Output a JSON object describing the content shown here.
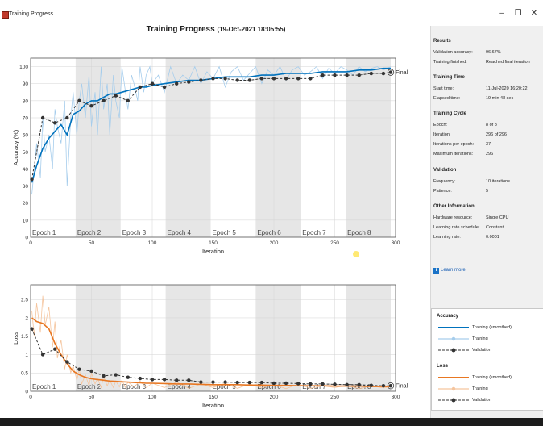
{
  "window": {
    "title": "Training Progress",
    "minimize": "–",
    "maximize": "❐",
    "close": "✕"
  },
  "header": {
    "title": "Training Progress",
    "timestamp": "(19-Oct-2021 18:05:55)"
  },
  "panel": {
    "results": {
      "heading": "Results",
      "rows": [
        {
          "label": "Validation accuracy:",
          "value": "96.67%"
        },
        {
          "label": "Training finished:",
          "value": "Reached final iteration"
        }
      ]
    },
    "time": {
      "heading": "Training Time",
      "rows": [
        {
          "label": "Start time:",
          "value": "11-Jul-2020 16:20:22"
        },
        {
          "label": "Elapsed time:",
          "value": "19 min 48 sec"
        }
      ]
    },
    "cycle": {
      "heading": "Training Cycle",
      "rows": [
        {
          "label": "Epoch:",
          "value": "8 of 8"
        },
        {
          "label": "Iteration:",
          "value": "296 of 296"
        },
        {
          "label": "Iterations per epoch:",
          "value": "37"
        },
        {
          "label": "Maximum iterations:",
          "value": "296"
        }
      ]
    },
    "validation": {
      "heading": "Validation",
      "rows": [
        {
          "label": "Frequency:",
          "value": "10 iterations"
        },
        {
          "label": "Patience:",
          "value": "5"
        }
      ]
    },
    "other": {
      "heading": "Other Information",
      "rows": [
        {
          "label": "Hardware resource:",
          "value": "Single CPU"
        },
        {
          "label": "Learning rate schedule:",
          "value": "Constant"
        },
        {
          "label": "Learning rate:",
          "value": "0.0001"
        }
      ]
    },
    "learn_more": "Learn more"
  },
  "legend": {
    "accuracy_heading": "Accuracy",
    "accuracy_items": [
      "Training (smoothed)",
      "Training",
      "Validation"
    ],
    "loss_heading": "Loss",
    "loss_items": [
      "Training (smoothed)",
      "Training",
      "Validation"
    ]
  },
  "colors": {
    "acc_smooth": "#0072bd",
    "acc_raw": "#a6cdec",
    "loss_smooth": "#e87722",
    "loss_raw": "#f5c59e",
    "validation": "#333333",
    "epoch_shade": "#e6e6e6"
  },
  "chart_data": [
    {
      "type": "line",
      "xlabel": "Iteration",
      "ylabel": "Accuracy (%)",
      "xlim": [
        0,
        300
      ],
      "ylim": [
        0,
        105
      ],
      "xticks": [
        0,
        50,
        100,
        150,
        200,
        250,
        300
      ],
      "yticks": [
        0,
        10,
        20,
        30,
        40,
        50,
        60,
        70,
        80,
        90,
        100
      ],
      "epochs": [
        "Epoch 1",
        "Epoch 2",
        "Epoch 3",
        "Epoch 4",
        "Epoch 5",
        "Epoch 6",
        "Epoch 7",
        "Epoch 8"
      ],
      "iterations_per_epoch": 37,
      "final_label": "Final",
      "series": [
        {
          "x": [
            1,
            5,
            10,
            15,
            20,
            25,
            30,
            35,
            40,
            45,
            50,
            55,
            60,
            65,
            70,
            75,
            80,
            85,
            90,
            95,
            100,
            110,
            120,
            130,
            140,
            150,
            160,
            170,
            180,
            190,
            200,
            210,
            220,
            230,
            240,
            250,
            260,
            270,
            280,
            290,
            296
          ],
          "values": [
            32,
            42,
            52,
            58,
            62,
            66,
            60,
            72,
            74,
            78,
            80,
            80,
            82,
            84,
            84,
            85,
            86,
            87,
            88,
            88,
            89,
            90,
            91,
            92,
            92,
            93,
            94,
            94,
            94,
            95,
            95,
            96,
            96,
            96,
            97,
            97,
            97,
            98,
            98,
            99,
            99
          ]
        },
        {
          "x": [
            1,
            3,
            5,
            8,
            10,
            12,
            15,
            18,
            20,
            22,
            25,
            28,
            30,
            33,
            35,
            38,
            40,
            42,
            45,
            48,
            50,
            53,
            55,
            58,
            60,
            63,
            65,
            68,
            70,
            73,
            75,
            78,
            80,
            83,
            85,
            88,
            90,
            93,
            95,
            98,
            100,
            105,
            110,
            115,
            120,
            125,
            130,
            135,
            140,
            145,
            150,
            155,
            160,
            165,
            170,
            175,
            180,
            185,
            190,
            195,
            200,
            205,
            210,
            215,
            220,
            225,
            230,
            235,
            240,
            245,
            250,
            255,
            260,
            265,
            270,
            275,
            280,
            285,
            290,
            296
          ],
          "values": [
            25,
            40,
            55,
            35,
            70,
            50,
            60,
            40,
            75,
            65,
            55,
            80,
            30,
            70,
            85,
            60,
            80,
            90,
            70,
            95,
            65,
            85,
            60,
            100,
            75,
            90,
            60,
            95,
            80,
            70,
            100,
            85,
            75,
            95,
            90,
            80,
            100,
            85,
            95,
            100,
            90,
            95,
            85,
            100,
            90,
            95,
            92,
            100,
            90,
            97,
            93,
            100,
            88,
            97,
            100,
            92,
            96,
            100,
            90,
            98,
            95,
            100,
            92,
            98,
            100,
            95,
            97,
            100,
            93,
            99,
            96,
            100,
            98,
            95,
            100,
            97,
            99,
            100,
            98,
            100
          ]
        },
        {
          "x": [
            1,
            10,
            20,
            30,
            40,
            50,
            60,
            70,
            80,
            90,
            100,
            110,
            120,
            130,
            140,
            150,
            160,
            170,
            180,
            190,
            200,
            210,
            220,
            230,
            240,
            250,
            260,
            270,
            280,
            290,
            296
          ],
          "values": [
            34,
            70,
            67,
            70,
            80,
            77,
            80,
            83,
            80,
            88,
            90,
            88,
            90,
            91,
            92,
            93,
            93,
            92,
            92,
            93,
            93,
            93,
            93,
            93,
            95,
            95,
            95,
            95,
            96,
            96,
            96.67
          ]
        }
      ]
    },
    {
      "type": "line",
      "xlabel": "Iteration",
      "ylabel": "Loss",
      "xlim": [
        0,
        300
      ],
      "ylim": [
        0,
        2.9
      ],
      "xticks": [
        0,
        50,
        100,
        150,
        200,
        250,
        300
      ],
      "yticks": [
        0,
        0.5,
        1,
        1.5,
        2,
        2.5
      ],
      "epochs": [
        "Epoch 1",
        "Epoch 2",
        "Epoch 3",
        "Epoch 4",
        "Epoch 5",
        "Epoch 6",
        "Epoch 7",
        "Epoch 8"
      ],
      "iterations_per_epoch": 37,
      "final_label": "Final",
      "series": [
        {
          "x": [
            1,
            5,
            10,
            15,
            20,
            25,
            30,
            35,
            40,
            45,
            50,
            55,
            60,
            65,
            70,
            75,
            80,
            85,
            90,
            95,
            100,
            110,
            120,
            130,
            140,
            150,
            160,
            170,
            180,
            190,
            200,
            210,
            220,
            230,
            240,
            250,
            260,
            270,
            280,
            290,
            296
          ],
          "values": [
            2.0,
            1.9,
            1.85,
            1.7,
            1.3,
            1.0,
            0.75,
            0.55,
            0.45,
            0.38,
            0.34,
            0.32,
            0.3,
            0.28,
            0.27,
            0.26,
            0.25,
            0.24,
            0.23,
            0.22,
            0.22,
            0.21,
            0.2,
            0.2,
            0.19,
            0.18,
            0.18,
            0.18,
            0.17,
            0.17,
            0.16,
            0.16,
            0.15,
            0.15,
            0.15,
            0.14,
            0.14,
            0.14,
            0.13,
            0.13,
            0.13
          ]
        },
        {
          "x": [
            1,
            3,
            5,
            8,
            10,
            12,
            15,
            18,
            20,
            22,
            25,
            28,
            30,
            33,
            35,
            38,
            40,
            42,
            45,
            48,
            50,
            53,
            55,
            58,
            60,
            63,
            65,
            68,
            70,
            73,
            75,
            78,
            80,
            85,
            90,
            95,
            100,
            110,
            120,
            130,
            140,
            150,
            160,
            170,
            180,
            190,
            200,
            210,
            220,
            230,
            240,
            250,
            260,
            270,
            280,
            290,
            296
          ],
          "values": [
            2.2,
            1.5,
            2.4,
            1.6,
            2.6,
            1.8,
            2.3,
            1.2,
            1.9,
            0.9,
            1.4,
            0.6,
            1.0,
            0.5,
            0.7,
            0.3,
            0.6,
            0.2,
            0.45,
            0.15,
            0.5,
            0.2,
            0.35,
            0.1,
            0.4,
            0.15,
            0.3,
            0.1,
            0.28,
            0.12,
            0.3,
            0.1,
            0.25,
            0.12,
            0.28,
            0.1,
            0.22,
            0.1,
            0.25,
            0.08,
            0.2,
            0.1,
            0.22,
            0.08,
            0.2,
            0.1,
            0.18,
            0.07,
            0.2,
            0.08,
            0.15,
            0.1,
            0.16,
            0.07,
            0.15,
            0.09,
            0.12
          ]
        },
        {
          "x": [
            1,
            10,
            20,
            30,
            40,
            50,
            60,
            70,
            80,
            90,
            100,
            110,
            120,
            130,
            140,
            150,
            160,
            170,
            180,
            190,
            200,
            210,
            220,
            230,
            240,
            250,
            260,
            270,
            280,
            290,
            296
          ],
          "values": [
            1.7,
            1.0,
            1.15,
            0.8,
            0.6,
            0.55,
            0.42,
            0.45,
            0.38,
            0.35,
            0.32,
            0.32,
            0.3,
            0.3,
            0.25,
            0.25,
            0.25,
            0.24,
            0.24,
            0.24,
            0.22,
            0.22,
            0.21,
            0.2,
            0.2,
            0.19,
            0.18,
            0.18,
            0.16,
            0.15,
            0.15
          ]
        }
      ]
    }
  ]
}
